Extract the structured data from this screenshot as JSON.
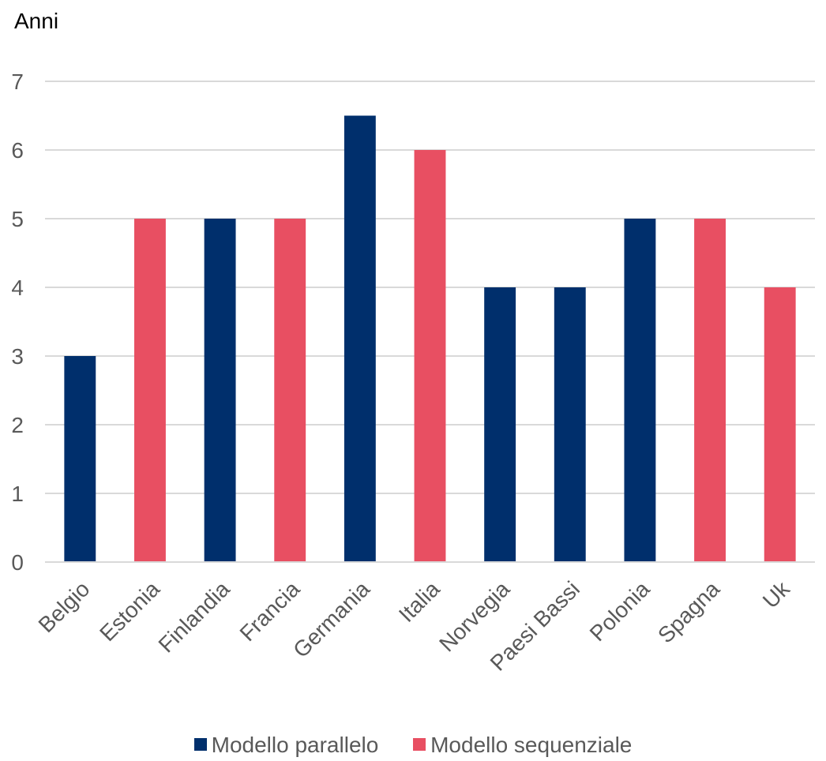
{
  "chart_data": {
    "type": "bar",
    "ylabel": "Anni",
    "ylim": [
      0,
      7
    ],
    "yticks": [
      0,
      1,
      2,
      3,
      4,
      5,
      6,
      7
    ],
    "grid": true,
    "legend_position": "bottom",
    "categories": [
      "Belgio",
      "Estonia",
      "Finlandia",
      "Francia",
      "Germania",
      "Italia",
      "Norvegia",
      "Paesi Bassi",
      "Polonia",
      "Spagna",
      "Uk"
    ],
    "series": [
      {
        "name": "Modello parallelo",
        "color": "#002F6C",
        "values": [
          3,
          null,
          5,
          null,
          6.5,
          null,
          4,
          4,
          5,
          null,
          null
        ]
      },
      {
        "name": "Modello sequenziale",
        "color": "#E84F62",
        "values": [
          null,
          5,
          null,
          5,
          null,
          6,
          null,
          null,
          null,
          5,
          4
        ]
      }
    ]
  }
}
